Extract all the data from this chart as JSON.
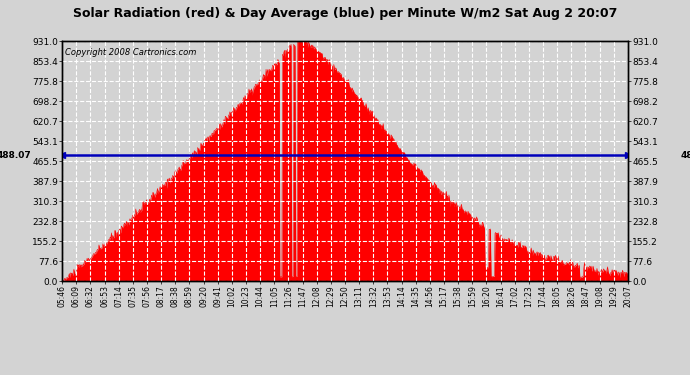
{
  "title": "Solar Radiation (red) & Day Average (blue) per Minute W/m2 Sat Aug 2 20:07",
  "copyright": "Copyright 2008 Cartronics.com",
  "average_value": 488.07,
  "y_max": 931.0,
  "y_min": 0.0,
  "y_ticks": [
    0.0,
    77.6,
    155.2,
    232.8,
    310.3,
    387.9,
    465.5,
    543.1,
    620.7,
    698.2,
    775.8,
    853.4,
    931.0
  ],
  "background_color": "#d3d3d3",
  "plot_bg_color": "#d3d3d3",
  "fill_color": "#ff0000",
  "line_color": "#ff0000",
  "avg_line_color": "#0000bb",
  "grid_color": "#ffffff",
  "x_tick_labels": [
    "05:46",
    "06:09",
    "06:32",
    "06:53",
    "07:14",
    "07:35",
    "07:56",
    "08:17",
    "08:38",
    "08:59",
    "09:20",
    "09:41",
    "10:02",
    "10:23",
    "10:44",
    "11:05",
    "11:26",
    "11:47",
    "12:08",
    "12:29",
    "12:50",
    "13:11",
    "13:32",
    "13:53",
    "14:14",
    "14:35",
    "14:56",
    "15:17",
    "15:38",
    "15:59",
    "16:20",
    "16:41",
    "17:02",
    "17:23",
    "17:44",
    "18:05",
    "18:26",
    "18:47",
    "19:08",
    "19:29",
    "20:07"
  ],
  "num_minutes": 861,
  "start_hour": 5.767,
  "peak_hour": 11.75,
  "end_hour": 20.117
}
